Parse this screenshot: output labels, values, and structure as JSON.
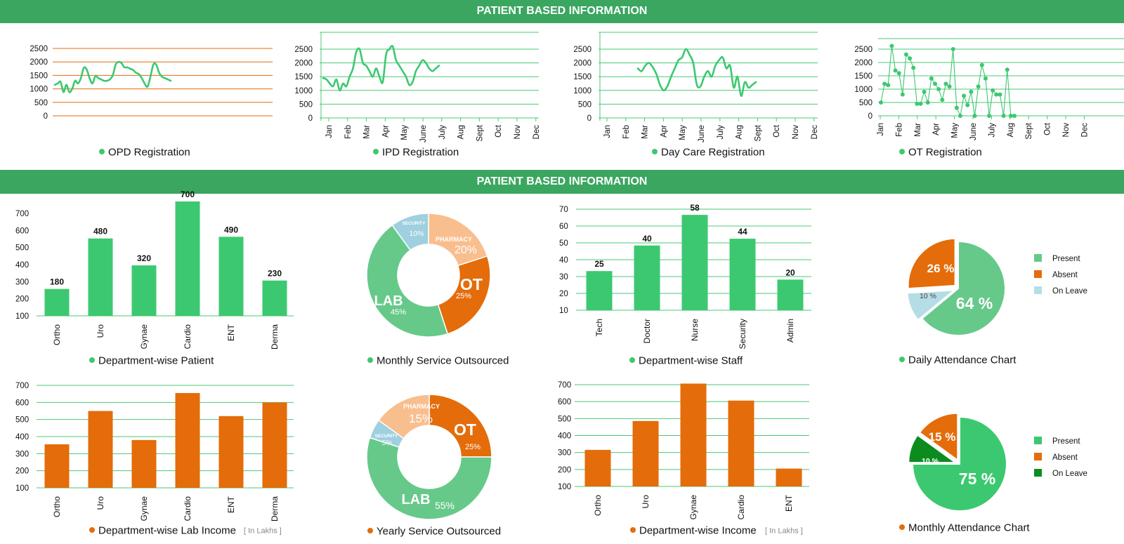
{
  "header": {
    "top_banner": "PATIENT BASED INFORMATION",
    "mid_banner": "PATIENT BASED INFORMATION"
  },
  "colors": {
    "green": "#3cc870",
    "orange": "#e46c0a",
    "banner": "#3aa660",
    "light_green": "#66c98a",
    "peach": "#f9be8e",
    "light_blue": "#9fd0df",
    "dark_green": "#0c8c1e",
    "grid_green": "#49c873"
  },
  "chart_data": [
    {
      "id": "opd",
      "type": "line",
      "title": "OPD Registration",
      "legend_color": "green",
      "yticks": [
        "2500",
        "2000",
        "1500",
        "1000",
        "500",
        "0"
      ],
      "ylim": [
        0,
        2500
      ],
      "xticks": [],
      "y": [
        1150,
        1200,
        1260,
        880,
        1150,
        880,
        1000,
        1300,
        1200,
        1400,
        1780,
        1720,
        1400,
        1200,
        1480,
        1400,
        1350,
        1300,
        1300,
        1350,
        1500,
        1900,
        2000,
        1960,
        1800,
        1800,
        1750,
        1700,
        1600,
        1550,
        1400,
        1200,
        1080,
        1450,
        1900,
        1900,
        1600,
        1450,
        1400,
        1350,
        1300
      ]
    },
    {
      "id": "ipd",
      "type": "line",
      "title": "IPD Registration",
      "legend_color": "green",
      "yticks": [
        "2500",
        "2000",
        "1500",
        "1000",
        "500",
        "0"
      ],
      "ylim": [
        0,
        2500
      ],
      "xticks": [
        "Jan",
        "Feb",
        "Mar",
        "Apr",
        "May",
        "June",
        "July",
        "Aug",
        "Sept",
        "Oct",
        "Nov",
        "Dec"
      ],
      "y": [
        1450,
        1400,
        1250,
        1150,
        1400,
        1000,
        1250,
        1150,
        1500,
        1800,
        2400,
        2500,
        2000,
        1900,
        1700,
        1500,
        1800,
        1500,
        1300,
        2300,
        2500,
        2600,
        2100,
        1900,
        1700,
        1500,
        1200,
        1300,
        1700,
        1900,
        2100,
        2000,
        1800,
        1700,
        1800,
        1900
      ]
    },
    {
      "id": "daycare",
      "type": "line",
      "title": "Day Care Registration",
      "legend_color": "green",
      "yticks": [
        "2500",
        "2000",
        "1500",
        "1000",
        "500",
        "0"
      ],
      "ylim": [
        0,
        2500
      ],
      "xticks": [
        "Jan",
        "Feb",
        "Mar",
        "Apr",
        "May",
        "June",
        "July",
        "Aug",
        "Sept",
        "Oct",
        "Nov",
        "Dec"
      ],
      "y": [
        1800,
        1700,
        1900,
        2000,
        1850,
        1600,
        1200,
        1000,
        1150,
        1500,
        1800,
        2100,
        2200,
        2500,
        2300,
        2000,
        1200,
        1150,
        1500,
        1700,
        1500,
        1900,
        2100,
        2200,
        1800,
        1900,
        1100,
        1500,
        800,
        1300,
        1100,
        1200,
        1300
      ]
    },
    {
      "id": "ot",
      "type": "line",
      "title": "OT Registration",
      "legend_color": "green",
      "yticks": [
        "2500",
        "2000",
        "1500",
        "1000",
        "500",
        "0"
      ],
      "ylim": [
        0,
        2500
      ],
      "xticks": [
        "Jan",
        "Feb",
        "Mar",
        "Apr",
        "May",
        "June",
        "July",
        "Aug",
        "Sept",
        "Oct",
        "Nov",
        "Dec"
      ],
      "y": [
        500,
        1200,
        1150,
        2620,
        1700,
        1600,
        800,
        2300,
        2150,
        1800,
        450,
        450,
        900,
        500,
        1400,
        1200,
        1000,
        600,
        1200,
        1100,
        2500,
        300,
        0,
        750,
        400,
        900,
        0,
        1100,
        1900,
        1400,
        0,
        950,
        800,
        800,
        0,
        1730,
        0,
        0
      ]
    },
    {
      "id": "dept-patient",
      "type": "bar",
      "title": "Department-wise Patient",
      "legend_color": "green",
      "categories": [
        "Ortho",
        "Uro",
        "Gynae",
        "Cardio",
        "ENT",
        "Derma"
      ],
      "values": [
        180,
        480,
        320,
        700,
        490,
        230
      ],
      "data_labels": [
        "180",
        "480",
        "320",
        "700",
        "490",
        "230"
      ],
      "yticks": [
        "700",
        "600",
        "500",
        "400",
        "300",
        "200",
        "100"
      ],
      "ylim": [
        100,
        700
      ],
      "bar_color": "green"
    },
    {
      "id": "monthly-service",
      "type": "pie",
      "title": "Monthly Service Outsourced",
      "legend_color": "green",
      "slices": [
        {
          "name": "PHARMACY",
          "value": 20,
          "label": "20%",
          "color": "peach"
        },
        {
          "name": "OT",
          "value": 25,
          "label": "25%",
          "color": "orange"
        },
        {
          "name": "LAB",
          "value": 45,
          "label": "45%",
          "color": "light_green"
        },
        {
          "name": "SECURITY",
          "value": 10,
          "label": "10%",
          "color": "light_blue"
        }
      ]
    },
    {
      "id": "dept-staff",
      "type": "bar",
      "title": "Department-wise Staff",
      "legend_color": "green",
      "categories": [
        "Tech",
        "Doctor",
        "Nurse",
        "Security",
        "Admin"
      ],
      "values": [
        25,
        40,
        58,
        44,
        20
      ],
      "data_labels": [
        "25",
        "40",
        "58",
        "44",
        "20"
      ],
      "yticks": [
        "70",
        "60",
        "50",
        "40",
        "30",
        "20",
        "10"
      ],
      "ylim": [
        10,
        70
      ],
      "bar_color": "green"
    },
    {
      "id": "daily-attendance",
      "type": "pie",
      "title": "Daily Attendance Chart",
      "legend_color": "green",
      "slices": [
        {
          "name": "Present",
          "value": 64,
          "label": "64 %",
          "color": "light_green"
        },
        {
          "name": "On Leave",
          "value": 10,
          "label": "10 %",
          "color": "#b5dde6"
        },
        {
          "name": "Absent",
          "value": 26,
          "label": "26 %",
          "color": "orange"
        }
      ],
      "legend": [
        {
          "name": "Present",
          "color": "light_green"
        },
        {
          "name": "Absent",
          "color": "orange"
        },
        {
          "name": "On Leave",
          "color": "#b5dde6"
        }
      ]
    },
    {
      "id": "dept-lab-income",
      "type": "bar",
      "title": "Department-wise Lab Income",
      "note": "[ In Lakhs ]",
      "legend_color": "orange",
      "categories": [
        "Ortho",
        "Uro",
        "Gynae",
        "Cardio",
        "ENT",
        "Derma"
      ],
      "values": [
        355,
        550,
        380,
        655,
        520,
        600
      ],
      "yticks": [
        "700",
        "600",
        "500",
        "400",
        "300",
        "200",
        "100"
      ],
      "ylim": [
        100,
        700
      ],
      "bar_color": "orange"
    },
    {
      "id": "yearly-service",
      "type": "pie",
      "title": "Yearly Service Outsourced",
      "legend_color": "orange",
      "slices": [
        {
          "name": "OT",
          "value": 25,
          "label": "25%",
          "color": "orange"
        },
        {
          "name": "LAB",
          "value": 55,
          "label": "55%",
          "color": "light_green"
        },
        {
          "name": "SECURITY",
          "value": 5,
          "label": "5%",
          "color": "light_blue"
        },
        {
          "name": "PHARMACY",
          "value": 15,
          "label": "15%",
          "color": "peach"
        }
      ]
    },
    {
      "id": "dept-income",
      "type": "bar",
      "title": "Department-wise Income",
      "note": "[ In Lakhs ]",
      "legend_color": "orange",
      "categories": [
        "Ortho",
        "Uro",
        "Gynae",
        "Cardio",
        "ENT"
      ],
      "values": [
        275,
        445,
        665,
        565,
        165
      ],
      "yticks": [
        "700",
        "600",
        "500",
        "400",
        "300",
        "200",
        "100"
      ],
      "ylim": [
        100,
        700
      ],
      "bar_color": "orange"
    },
    {
      "id": "monthly-attendance",
      "type": "pie",
      "title": "Monthly Attendance Chart",
      "legend_color": "orange",
      "slices": [
        {
          "name": "Present",
          "value": 75,
          "label": "75 %",
          "color": "green"
        },
        {
          "name": "On Leave",
          "value": 10,
          "label": "10 %",
          "color": "dark_green"
        },
        {
          "name": "Absent",
          "value": 15,
          "label": "15 %",
          "color": "orange"
        }
      ],
      "legend": [
        {
          "name": "Present",
          "color": "green"
        },
        {
          "name": "Absent",
          "color": "orange"
        },
        {
          "name": "On Leave",
          "color": "dark_green"
        }
      ]
    }
  ]
}
